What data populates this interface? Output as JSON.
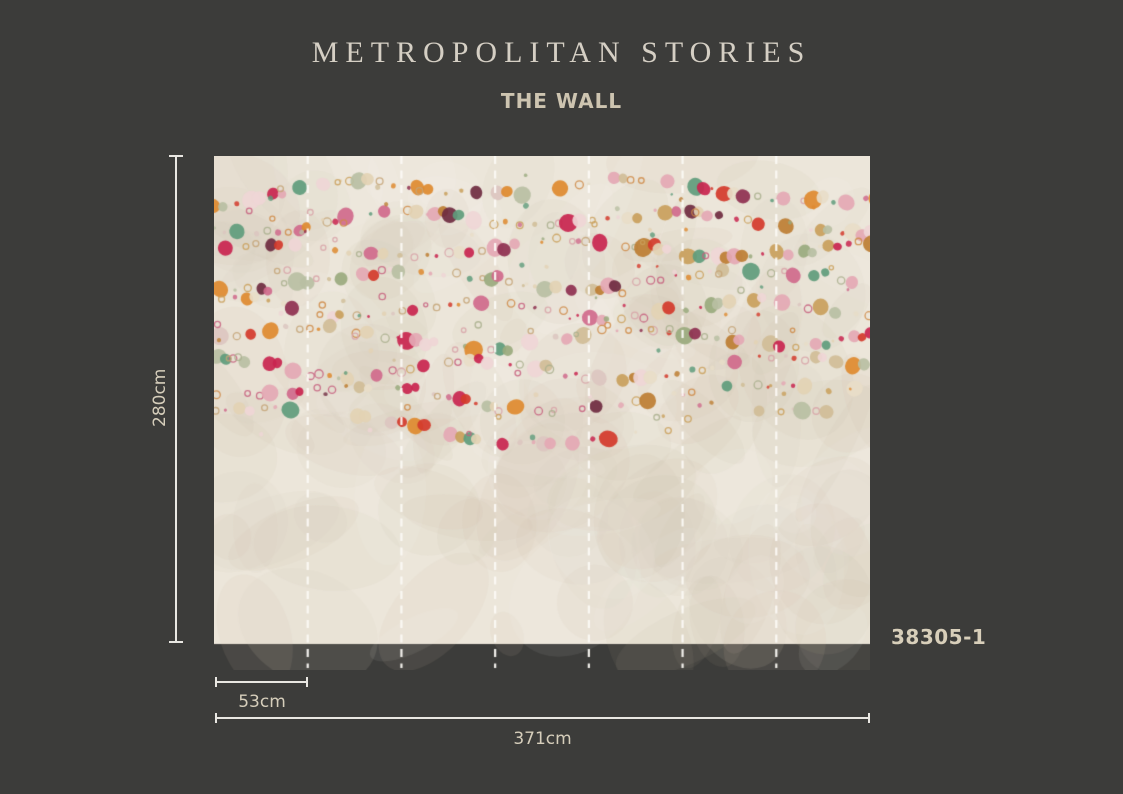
{
  "header": {
    "brand": "METROPOLITAN STORIES",
    "collection": "THE WALL"
  },
  "product": {
    "code": "38305-1"
  },
  "measurements": {
    "height": "280cm",
    "panel_width": "53cm",
    "total_width": "371cm"
  },
  "colors": {
    "page_bg": "#3c3c3a",
    "brand_text": "#d5cfc4",
    "collection_text": "#cdc4b0",
    "measure_line": "#e9e7e2",
    "measure_text": "#d6cebb",
    "code_text": "#d8cfba",
    "wall_bg": "#ece6da",
    "seam_dash": "#fcfaf6"
  },
  "wallpaper": {
    "panels": 7,
    "seed": 7,
    "scatter": 100,
    "blotches": 180,
    "texture_colors": [
      "rgba(203,191,170,0.10)",
      "rgba(255,255,255,0.07)",
      "rgba(188,176,155,0.08)",
      "rgba(214,204,186,0.12)"
    ],
    "palette": [
      {
        "c": "#c9254f",
        "w": 2.0
      },
      {
        "c": "#d43a2b",
        "w": 1.4
      },
      {
        "c": "#de8a2f",
        "w": 2.0
      },
      {
        "c": "#bd7e33",
        "w": 1.4
      },
      {
        "c": "#c9a05c",
        "w": 1.5
      },
      {
        "c": "#9aaa7e",
        "w": 1.5
      },
      {
        "c": "#5f9c7c",
        "w": 1.4
      },
      {
        "c": "#b9bfa3",
        "w": 1.0
      },
      {
        "c": "#e4a8b4",
        "w": 2.0
      },
      {
        "c": "#efd6d6",
        "w": 2.0
      },
      {
        "c": "#d06a8c",
        "w": 1.4
      },
      {
        "c": "#8e3050",
        "w": 1.0
      },
      {
        "c": "#6f2b40",
        "w": 0.6
      },
      {
        "c": "#e3d2b4",
        "w": 2.0
      },
      {
        "c": "#d0bd97",
        "w": 1.5
      },
      {
        "c": "#e8ddc8",
        "w": 1.5
      },
      {
        "c": "#dcc6c0",
        "w": 1.0
      }
    ],
    "ring_colors": [
      "#cf8a45",
      "#d8a3a8",
      "#c4a376",
      "#a9af8d",
      "#c75f7e",
      "#caa05a"
    ],
    "strands": [
      {
        "base": 42,
        "sag": -12,
        "amp": 8,
        "wl": 300,
        "ph": 2.0,
        "keep": 0.85
      },
      {
        "base": 70,
        "sag": -8,
        "amp": 8,
        "wl": 280,
        "ph": 0.5,
        "keep": 1.0
      },
      {
        "base": 96,
        "sag": -4,
        "amp": 8,
        "wl": 300,
        "ph": 3.6,
        "keep": 1.0
      },
      {
        "base": 124,
        "sag": 0,
        "amp": 9,
        "wl": 340,
        "ph": 1.2,
        "keep": 1.0
      },
      {
        "base": 150,
        "sag": 4,
        "amp": 8,
        "wl": 260,
        "ph": 4.4,
        "keep": 1.0
      },
      {
        "base": 178,
        "sag": 6,
        "amp": 9,
        "wl": 310,
        "ph": 2.6,
        "keep": 1.0
      },
      {
        "base": 206,
        "sag": 10,
        "amp": 9,
        "wl": 290,
        "ph": 5.2,
        "keep": 0.95
      },
      {
        "base": 230,
        "sag": 16,
        "amp": 9,
        "wl": 360,
        "ph": 1.8,
        "keep": 0.85
      },
      {
        "base": 252,
        "sag": 26,
        "amp": 10,
        "wl": 420,
        "ph": 3.1,
        "keep": 0.62
      }
    ]
  }
}
